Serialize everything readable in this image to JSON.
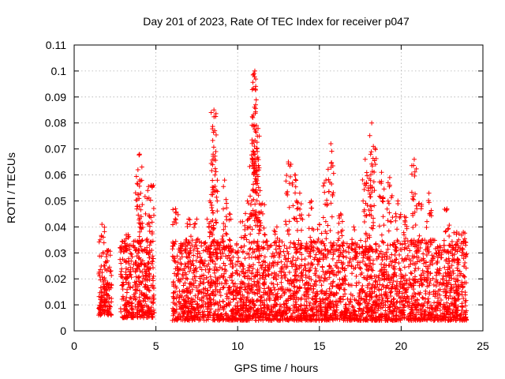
{
  "chart_data": {
    "type": "scatter",
    "title": "Day 201 of 2023, Rate Of TEC Index for receiver p047",
    "xlabel": "GPS time / hours",
    "ylabel": "ROTI / TECUs",
    "xlim": [
      0,
      25
    ],
    "ylim": [
      0,
      0.11
    ],
    "x_ticks": [
      "0",
      "5",
      "10",
      "15",
      "20",
      "25"
    ],
    "y_ticks": [
      "0",
      "0.01",
      "0.02",
      "0.03",
      "0.04",
      "0.05",
      "0.06",
      "0.07",
      "0.08",
      "0.09",
      "0.1",
      "0.11"
    ],
    "grid": true,
    "marker": "plus",
    "color": "#ff0000",
    "coverage": [
      {
        "x_range": [
          1.5,
          2.3
        ],
        "y_range": [
          0.006,
          0.03
        ]
      },
      {
        "x_range": [
          2.8,
          4.9
        ],
        "y_range": [
          0.005,
          0.035
        ]
      },
      {
        "x_range": [
          6.0,
          24.0
        ],
        "y_range": [
          0.004,
          0.035
        ]
      }
    ],
    "peaks": [
      {
        "x": 1.7,
        "y": 0.041
      },
      {
        "x": 2.1,
        "y": 0.031
      },
      {
        "x": 3.0,
        "y": 0.032
      },
      {
        "x": 3.3,
        "y": 0.037
      },
      {
        "x": 3.9,
        "y": 0.062
      },
      {
        "x": 4.0,
        "y": 0.068
      },
      {
        "x": 4.1,
        "y": 0.044
      },
      {
        "x": 4.5,
        "y": 0.054
      },
      {
        "x": 4.7,
        "y": 0.056
      },
      {
        "x": 6.2,
        "y": 0.047
      },
      {
        "x": 7.0,
        "y": 0.043
      },
      {
        "x": 7.5,
        "y": 0.043
      },
      {
        "x": 8.3,
        "y": 0.05
      },
      {
        "x": 8.5,
        "y": 0.068
      },
      {
        "x": 8.55,
        "y": 0.085
      },
      {
        "x": 8.6,
        "y": 0.077
      },
      {
        "x": 9.2,
        "y": 0.058
      },
      {
        "x": 9.5,
        "y": 0.045
      },
      {
        "x": 10.3,
        "y": 0.042
      },
      {
        "x": 10.6,
        "y": 0.05
      },
      {
        "x": 10.9,
        "y": 0.065
      },
      {
        "x": 11.0,
        "y": 0.099
      },
      {
        "x": 11.05,
        "y": 0.1
      },
      {
        "x": 11.1,
        "y": 0.087
      },
      {
        "x": 11.15,
        "y": 0.079
      },
      {
        "x": 11.2,
        "y": 0.069
      },
      {
        "x": 11.5,
        "y": 0.049
      },
      {
        "x": 12.4,
        "y": 0.04
      },
      {
        "x": 13.1,
        "y": 0.065
      },
      {
        "x": 13.5,
        "y": 0.06
      },
      {
        "x": 13.8,
        "y": 0.053
      },
      {
        "x": 14.5,
        "y": 0.05
      },
      {
        "x": 15.0,
        "y": 0.041
      },
      {
        "x": 15.4,
        "y": 0.058
      },
      {
        "x": 15.7,
        "y": 0.072
      },
      {
        "x": 16.3,
        "y": 0.045
      },
      {
        "x": 17.1,
        "y": 0.04
      },
      {
        "x": 17.8,
        "y": 0.066
      },
      {
        "x": 18.0,
        "y": 0.055
      },
      {
        "x": 18.2,
        "y": 0.08
      },
      {
        "x": 18.3,
        "y": 0.071
      },
      {
        "x": 18.8,
        "y": 0.061
      },
      {
        "x": 19.3,
        "y": 0.059
      },
      {
        "x": 19.8,
        "y": 0.05
      },
      {
        "x": 20.2,
        "y": 0.044
      },
      {
        "x": 20.8,
        "y": 0.066
      },
      {
        "x": 21.1,
        "y": 0.049
      },
      {
        "x": 21.7,
        "y": 0.053
      },
      {
        "x": 22.3,
        "y": 0.03
      },
      {
        "x": 22.8,
        "y": 0.047
      },
      {
        "x": 23.4,
        "y": 0.038
      },
      {
        "x": 23.8,
        "y": 0.038
      }
    ]
  }
}
